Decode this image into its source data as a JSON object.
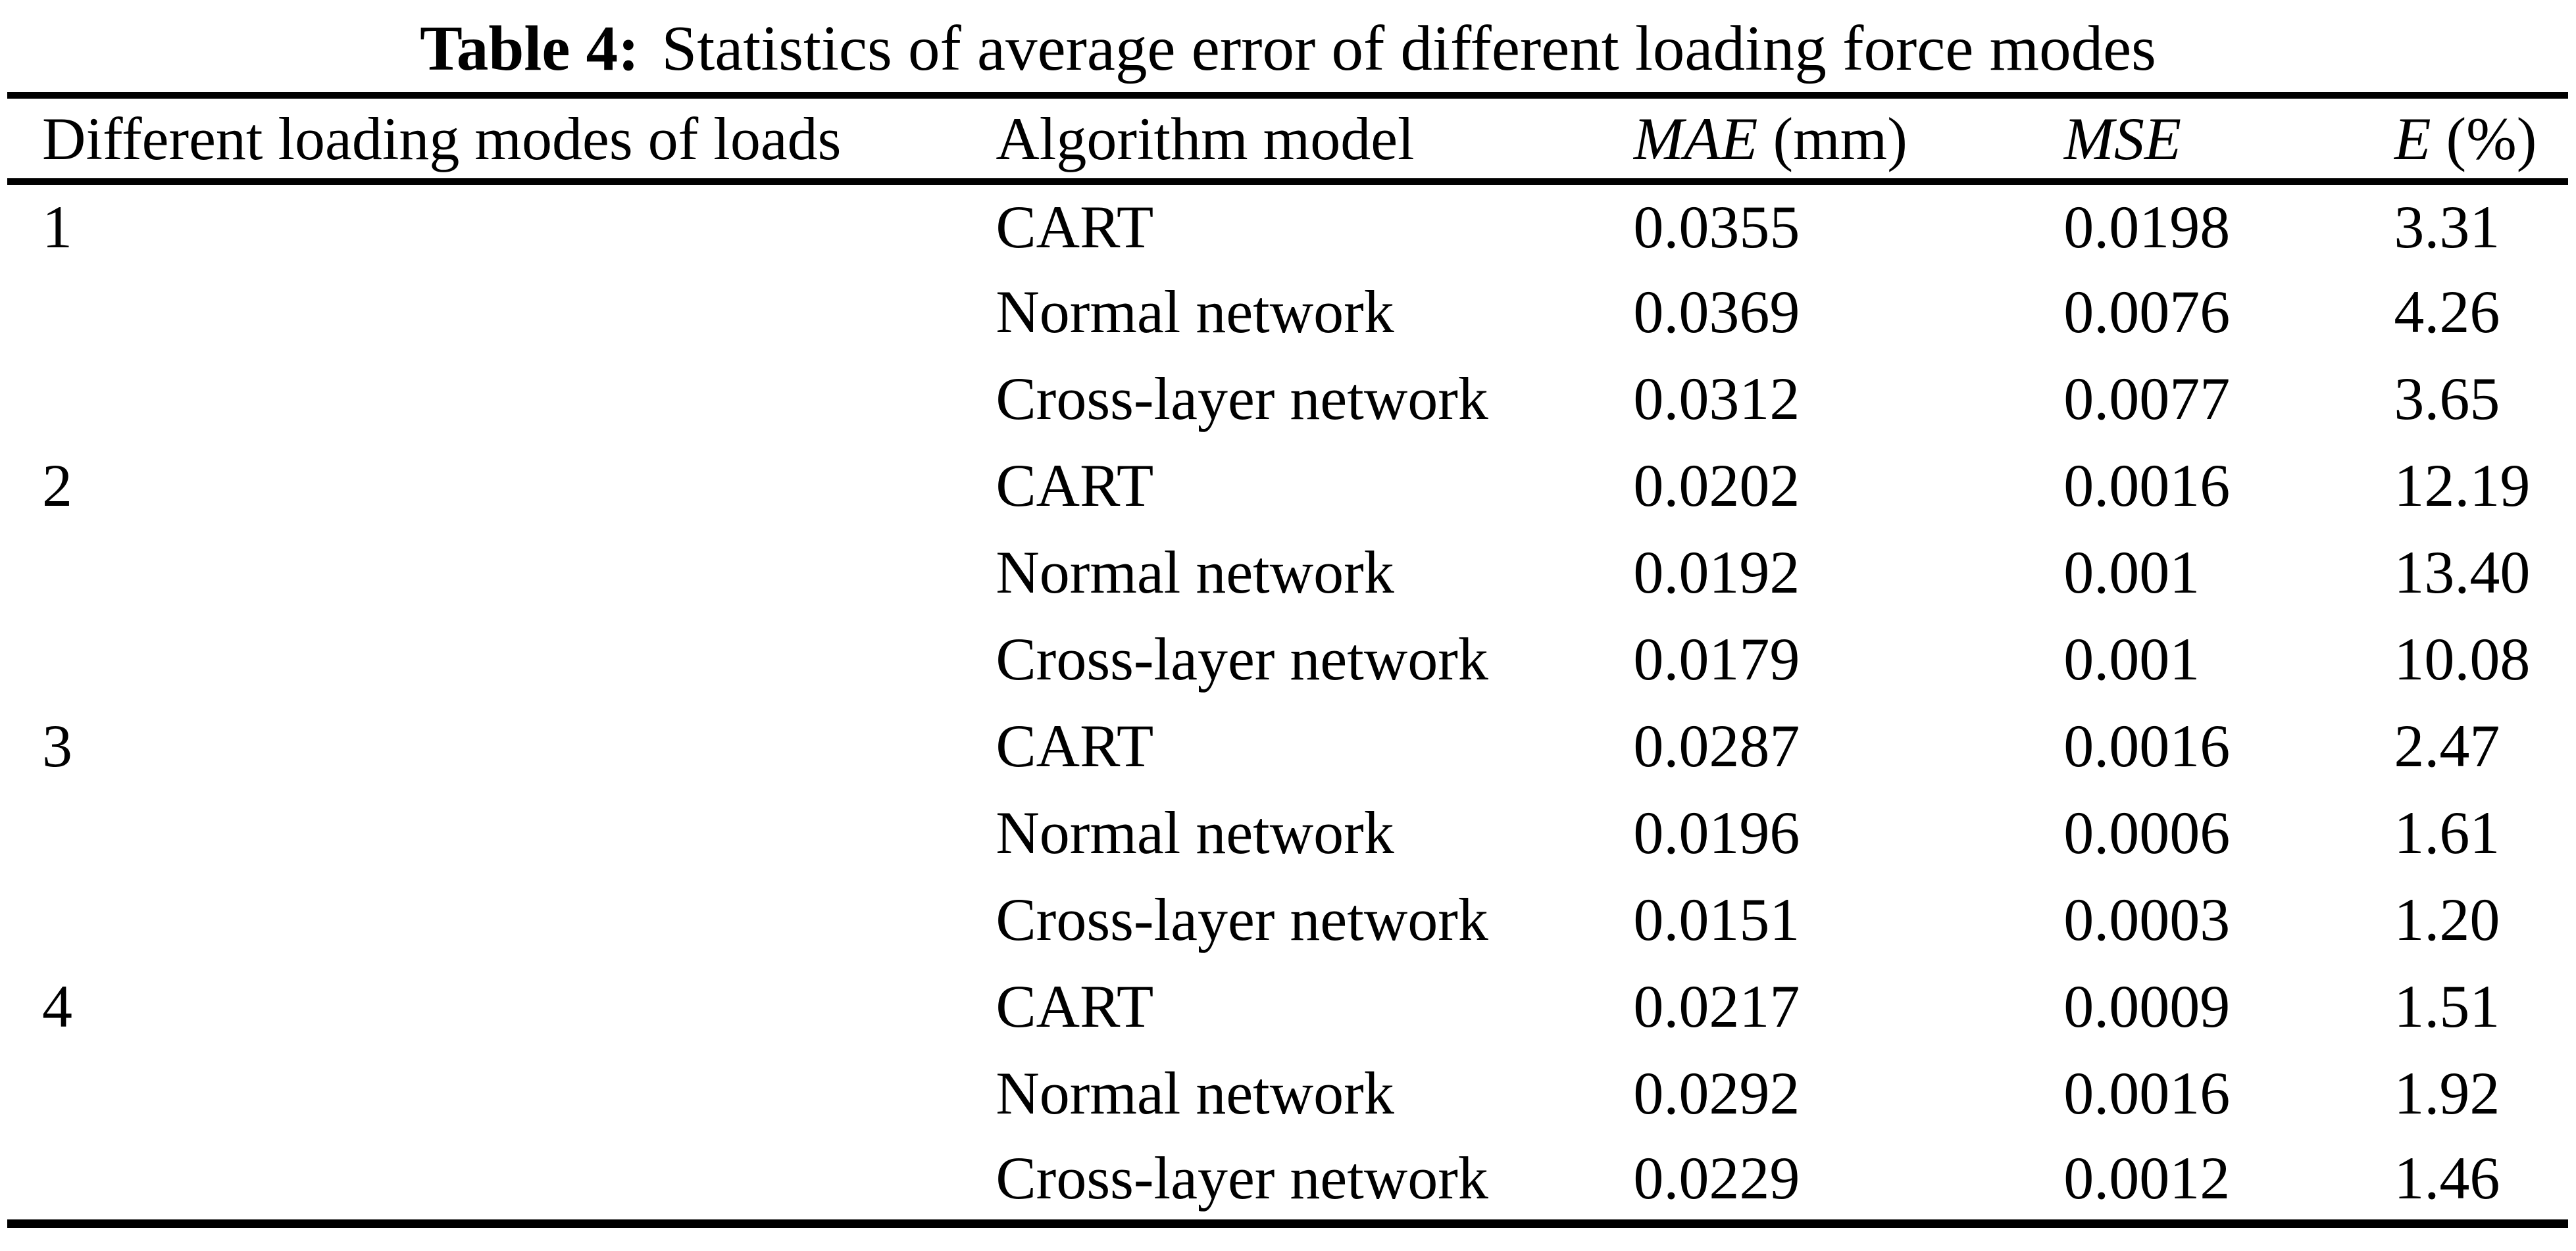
{
  "caption": {
    "label": "Table 4:",
    "text": "Statistics of average error of different loading force modes"
  },
  "table": {
    "columns": [
      {
        "italic": "",
        "normal": "Different loading modes of loads"
      },
      {
        "italic": "",
        "normal": "Algorithm model"
      },
      {
        "italic": "MAE",
        "normal": " (mm)"
      },
      {
        "italic": "MSE",
        "normal": ""
      },
      {
        "italic": "E",
        "normal": " (%)"
      }
    ],
    "rows": [
      {
        "mode": "1",
        "model": "CART",
        "mae": "0.0355",
        "mse": "0.0198",
        "e": "3.31"
      },
      {
        "mode": "",
        "model": "Normal network",
        "mae": "0.0369",
        "mse": "0.0076",
        "e": "4.26"
      },
      {
        "mode": "",
        "model": "Cross-layer network",
        "mae": "0.0312",
        "mse": "0.0077",
        "e": "3.65"
      },
      {
        "mode": "2",
        "model": "CART",
        "mae": "0.0202",
        "mse": "0.0016",
        "e": "12.19"
      },
      {
        "mode": "",
        "model": "Normal network",
        "mae": "0.0192",
        "mse": "0.001",
        "e": "13.40"
      },
      {
        "mode": "",
        "model": "Cross-layer network",
        "mae": "0.0179",
        "mse": "0.001",
        "e": "10.08"
      },
      {
        "mode": "3",
        "model": "CART",
        "mae": "0.0287",
        "mse": "0.0016",
        "e": "2.47"
      },
      {
        "mode": "",
        "model": "Normal network",
        "mae": "0.0196",
        "mse": "0.0006",
        "e": "1.61"
      },
      {
        "mode": "",
        "model": "Cross-layer network",
        "mae": "0.0151",
        "mse": "0.0003",
        "e": "1.20"
      },
      {
        "mode": "4",
        "model": "CART",
        "mae": "0.0217",
        "mse": "0.0009",
        "e": "1.51"
      },
      {
        "mode": "",
        "model": "Normal network",
        "mae": "0.0292",
        "mse": "0.0016",
        "e": "1.92"
      },
      {
        "mode": "",
        "model": "Cross-layer network",
        "mae": "0.0229",
        "mse": "0.0012",
        "e": "1.46"
      }
    ],
    "colors": {
      "text": "#000000",
      "background": "#ffffff",
      "rule": "#000000"
    }
  }
}
